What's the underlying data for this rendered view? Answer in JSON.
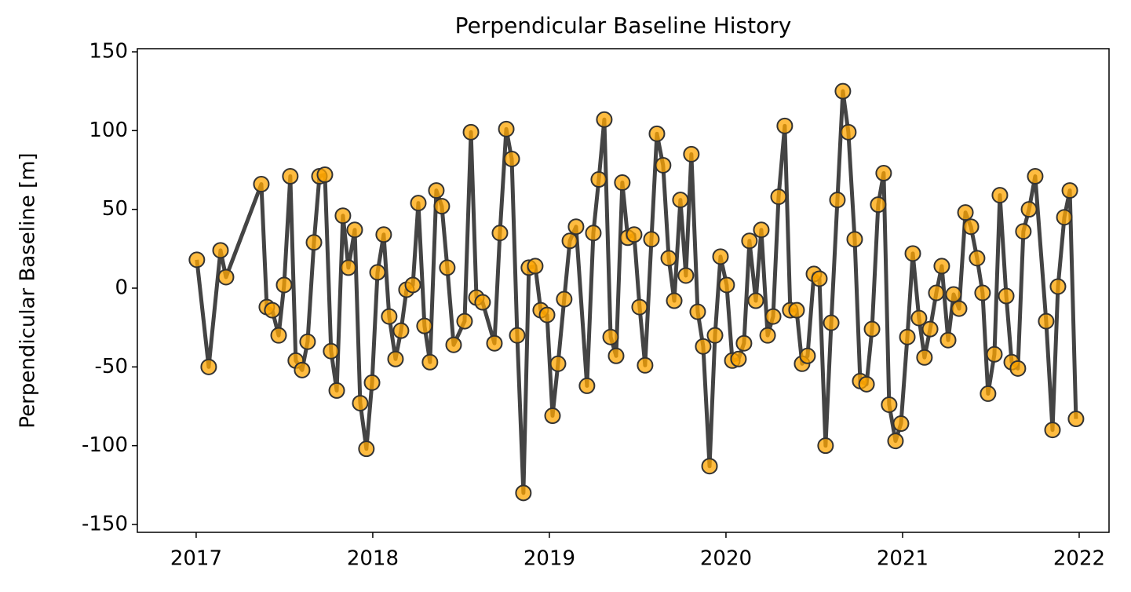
{
  "chart_data": {
    "type": "line",
    "title": "Perpendicular Baseline History",
    "ylabel": "Perpendicular Baseline [m]",
    "x": [
      2017.004,
      2017.071,
      2017.138,
      2017.169,
      2017.369,
      2017.4,
      2017.431,
      2017.467,
      2017.498,
      2017.533,
      2017.564,
      2017.6,
      2017.631,
      2017.667,
      2017.698,
      2017.729,
      2017.764,
      2017.796,
      2017.831,
      2017.862,
      2017.898,
      2017.929,
      2017.964,
      2017.996,
      2018.027,
      2018.062,
      2018.093,
      2018.129,
      2018.16,
      2018.191,
      2018.227,
      2018.258,
      2018.293,
      2018.324,
      2018.36,
      2018.391,
      2018.422,
      2018.458,
      2018.52,
      2018.556,
      2018.587,
      2018.622,
      2018.689,
      2018.72,
      2018.756,
      2018.787,
      2018.818,
      2018.853,
      2018.884,
      2018.92,
      2018.951,
      2018.987,
      2019.018,
      2019.049,
      2019.084,
      2019.116,
      2019.151,
      2019.213,
      2019.249,
      2019.28,
      2019.311,
      2019.347,
      2019.378,
      2019.413,
      2019.444,
      2019.48,
      2019.511,
      2019.542,
      2019.578,
      2019.609,
      2019.644,
      2019.676,
      2019.707,
      2019.742,
      2019.773,
      2019.804,
      2019.84,
      2019.871,
      2019.907,
      2019.938,
      2019.969,
      2020.004,
      2020.036,
      2020.071,
      2020.102,
      2020.133,
      2020.169,
      2020.2,
      2020.236,
      2020.267,
      2020.298,
      2020.333,
      2020.364,
      2020.4,
      2020.431,
      2020.462,
      2020.498,
      2020.529,
      2020.564,
      2020.596,
      2020.631,
      2020.662,
      2020.693,
      2020.729,
      2020.76,
      2020.796,
      2020.827,
      2020.862,
      2020.893,
      2020.924,
      2020.96,
      2020.991,
      2021.027,
      2021.058,
      2021.093,
      2021.124,
      2021.156,
      2021.191,
      2021.222,
      2021.258,
      2021.289,
      2021.32,
      2021.356,
      2021.387,
      2021.422,
      2021.453,
      2021.484,
      2021.52,
      2021.551,
      2021.587,
      2021.618,
      2021.653,
      2021.684,
      2021.716,
      2021.751,
      2021.813,
      2021.849,
      2021.88,
      2021.916,
      2021.947,
      2021.982
    ],
    "values": [
      18,
      -50,
      24,
      7,
      66,
      -12,
      -14,
      -30,
      2,
      71,
      -46,
      -52,
      -34,
      29,
      71,
      72,
      -40,
      -65,
      46,
      13,
      37,
      -73,
      -102,
      -60,
      10,
      34,
      -18,
      -45,
      -27,
      -1,
      2,
      54,
      -24,
      -47,
      62,
      52,
      13,
      -36,
      -21,
      99,
      -6,
      -9,
      -35,
      35,
      101,
      82,
      -30,
      -130,
      13,
      14,
      -14,
      -17,
      -81,
      -48,
      -7,
      30,
      39,
      -62,
      35,
      69,
      107,
      -31,
      -43,
      67,
      32,
      34,
      -12,
      -49,
      31,
      98,
      78,
      19,
      -8,
      56,
      8,
      85,
      -15,
      -37,
      -113,
      -30,
      20,
      2,
      -46,
      -45,
      -35,
      30,
      -8,
      37,
      -30,
      -18,
      58,
      103,
      -14,
      -14,
      -48,
      -43,
      9,
      6,
      -100,
      -22,
      56,
      125,
      99,
      31,
      -59,
      -61,
      -26,
      53,
      73,
      -74,
      -97,
      -86,
      -31,
      22,
      -19,
      -44,
      -26,
      -3,
      14,
      -33,
      -4,
      -13,
      48,
      39,
      19,
      -3,
      -67,
      -42,
      59,
      -5,
      -47,
      -51,
      36,
      50,
      71,
      -21,
      -90,
      1,
      45,
      62,
      -83
    ],
    "line_color": "#444444",
    "marker_color": "#ffa500",
    "xlim": [
      2016.667,
      2022.169
    ],
    "xticks": [
      2017,
      2018,
      2019,
      2020,
      2021,
      2022
    ],
    "ylim": [
      -155,
      152
    ],
    "yticks": [
      -150,
      -100,
      -50,
      0,
      50,
      100,
      150
    ]
  }
}
